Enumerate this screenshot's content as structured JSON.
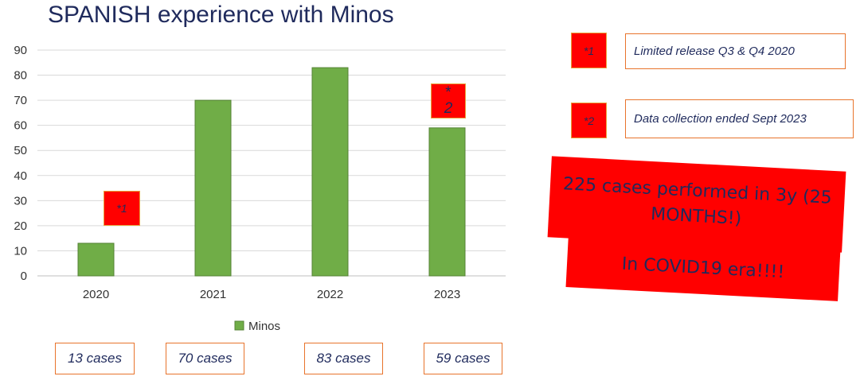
{
  "title": "SPANISH experience with Minos",
  "chart_data": {
    "type": "bar",
    "categories": [
      "2020",
      "2021",
      "2022",
      "2023"
    ],
    "series": [
      {
        "name": "Minos",
        "values": [
          13,
          70,
          83,
          59
        ]
      }
    ],
    "ylim": [
      0,
      90
    ],
    "yticks": [
      0,
      10,
      20,
      30,
      40,
      50,
      60,
      70,
      80,
      90
    ],
    "grid": true,
    "legend_position": "bottom",
    "bar_color": "#70ad47",
    "bar_edge_color": "#548235"
  },
  "case_labels": [
    "13 cases",
    "70 cases",
    "83 cases",
    "59 cases"
  ],
  "chart_markers": {
    "marker_2020": "*1",
    "marker_2023_line1": "*",
    "marker_2023_line2": "2"
  },
  "footnotes": [
    {
      "marker": "*1",
      "text": "Limited release Q3 & Q4 2020"
    },
    {
      "marker": "*2",
      "text": "Data collection ended Sept 2023"
    }
  ],
  "banners": {
    "banner_1": "225 cases performed in 3y (25 MONTHS!)",
    "banner_2": "In COVID19 era!!!!"
  },
  "colors": {
    "title": "#1f2a5c",
    "highlight_red": "#ff0000",
    "box_border": "#e8742c"
  }
}
